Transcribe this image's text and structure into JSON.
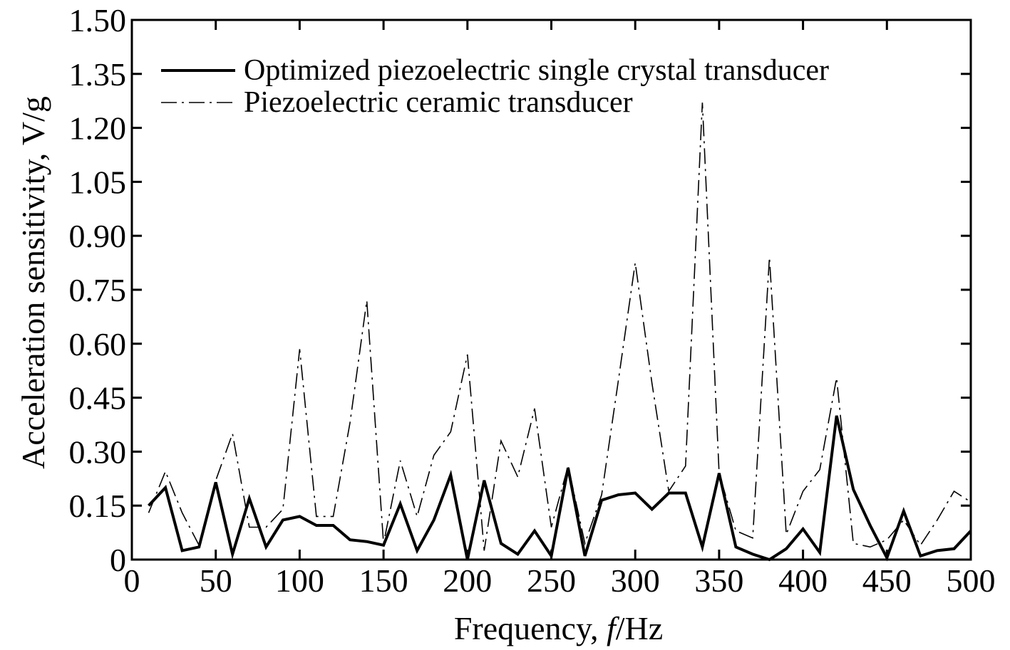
{
  "chart_data": {
    "type": "line",
    "xlabel_prefix": "Frequency, ",
    "xlabel_var": "f",
    "xlabel_suffix": "/Hz",
    "ylabel": "Acceleration sensitivity, V/g",
    "xlim": [
      0,
      500
    ],
    "ylim": [
      0,
      1.5
    ],
    "xticks": [
      0,
      50,
      100,
      150,
      200,
      250,
      300,
      350,
      400,
      450,
      500
    ],
    "xtick_labels": [
      "0",
      "50",
      "100",
      "150",
      "200",
      "250",
      "300",
      "350",
      "400",
      "450",
      "500"
    ],
    "yticks": [
      0,
      0.15,
      0.3,
      0.45,
      0.6,
      0.75,
      0.9,
      1.05,
      1.2,
      1.35,
      1.5
    ],
    "ytick_labels": [
      "0",
      "0.15",
      "0.30",
      "0.45",
      "0.60",
      "0.75",
      "0.90",
      "1.05",
      "1.20",
      "1.35",
      "1.50"
    ],
    "grid": false,
    "legend_position": "top-left",
    "x": [
      10,
      20,
      30,
      40,
      50,
      60,
      70,
      80,
      90,
      100,
      110,
      120,
      130,
      140,
      150,
      160,
      170,
      180,
      190,
      200,
      210,
      220,
      230,
      240,
      250,
      260,
      270,
      280,
      290,
      300,
      310,
      320,
      330,
      340,
      350,
      360,
      370,
      380,
      390,
      400,
      410,
      420,
      430,
      440,
      450,
      460,
      470,
      480,
      490,
      500
    ],
    "series": [
      {
        "name": "Optimized piezoelectric single crystal transducer",
        "style": "solid",
        "color": "#000000",
        "values": [
          0.15,
          0.2,
          0.025,
          0.035,
          0.215,
          0.015,
          0.17,
          0.035,
          0.11,
          0.12,
          0.095,
          0.095,
          0.055,
          0.05,
          0.04,
          0.155,
          0.025,
          0.11,
          0.235,
          0.0,
          0.22,
          0.045,
          0.015,
          0.08,
          0.01,
          0.255,
          0.01,
          0.165,
          0.18,
          0.185,
          0.14,
          0.185,
          0.185,
          0.035,
          0.24,
          0.035,
          0.015,
          0.0,
          0.03,
          0.085,
          0.02,
          0.4,
          0.195,
          0.095,
          0.005,
          0.135,
          0.01,
          0.025,
          0.03,
          0.08
        ]
      },
      {
        "name": "Piezoelectric ceramic transducer",
        "style": "dashdot",
        "color": "#000000",
        "values": [
          0.13,
          0.245,
          0.13,
          0.04,
          0.22,
          0.35,
          0.09,
          0.09,
          0.14,
          0.585,
          0.12,
          0.12,
          0.38,
          0.72,
          0.045,
          0.275,
          0.12,
          0.29,
          0.355,
          0.57,
          0.025,
          0.33,
          0.23,
          0.42,
          0.09,
          0.26,
          0.045,
          0.18,
          0.5,
          0.825,
          0.49,
          0.19,
          0.26,
          1.27,
          0.24,
          0.08,
          0.06,
          0.84,
          0.07,
          0.19,
          0.25,
          0.505,
          0.045,
          0.035,
          0.055,
          0.11,
          0.04,
          0.11,
          0.19,
          0.16
        ]
      }
    ]
  }
}
